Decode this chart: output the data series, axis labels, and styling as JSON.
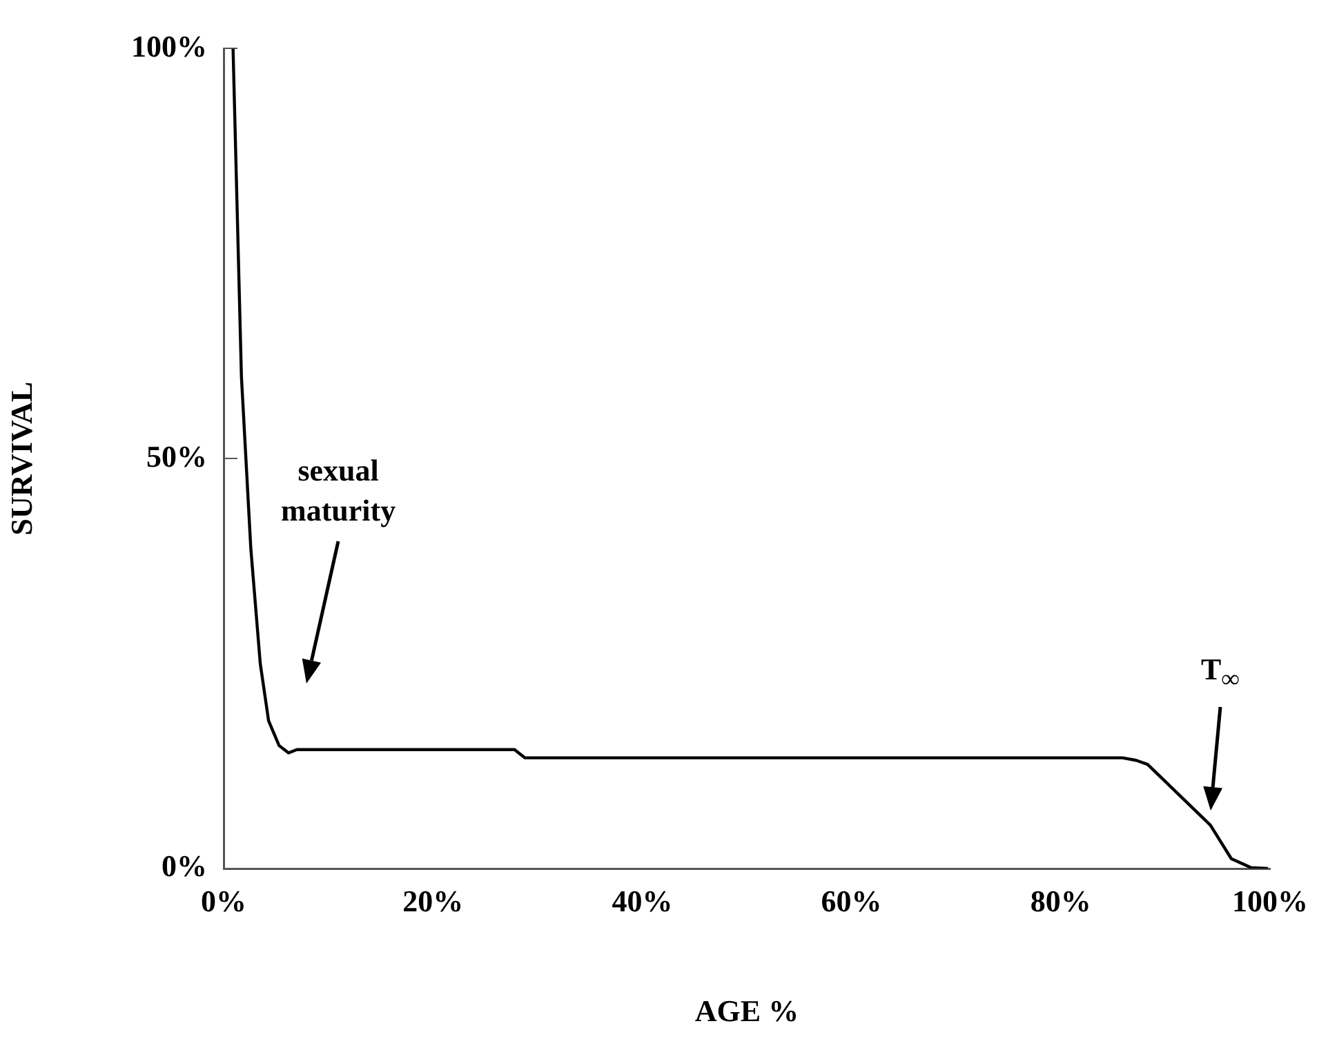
{
  "chart_data": {
    "type": "line",
    "xlabel": "AGE %",
    "ylabel": "SURVIVAL",
    "x": [
      0.9,
      1.7,
      2.6,
      3.5,
      4.3,
      5.3,
      6.2,
      7.0,
      27.8,
      28.8,
      85.9,
      87.2,
      88.3,
      94.3,
      96.3,
      98.2,
      99.8
    ],
    "series": [
      {
        "color": "#000000",
        "values": [
          100,
          60,
          39,
          25,
          18,
          15,
          14.1,
          14.5,
          14.5,
          13.5,
          13.5,
          13.2,
          12.7,
          5.3,
          1.2,
          0.1,
          0
        ]
      }
    ],
    "xlim": [
      0,
      100
    ],
    "xticks": [
      {
        "value": 0,
        "label": "0%"
      },
      {
        "value": 20,
        "label": "20%"
      },
      {
        "value": 40,
        "label": "40%"
      },
      {
        "value": 60,
        "label": "60%"
      },
      {
        "value": 80,
        "label": "80%"
      },
      {
        "value": 100,
        "label": "100%"
      }
    ],
    "ylim": [
      0,
      100
    ],
    "yticks": [
      {
        "value": 0,
        "label": "0%"
      },
      {
        "value": 50,
        "label": "50%"
      },
      {
        "value": 100,
        "label": "100%"
      }
    ],
    "grid": false,
    "legend": false,
    "marker": "none",
    "line_style": "solid",
    "annotations": [
      "sexual\nmaturity",
      "T$_{∞}$"
    ]
  }
}
